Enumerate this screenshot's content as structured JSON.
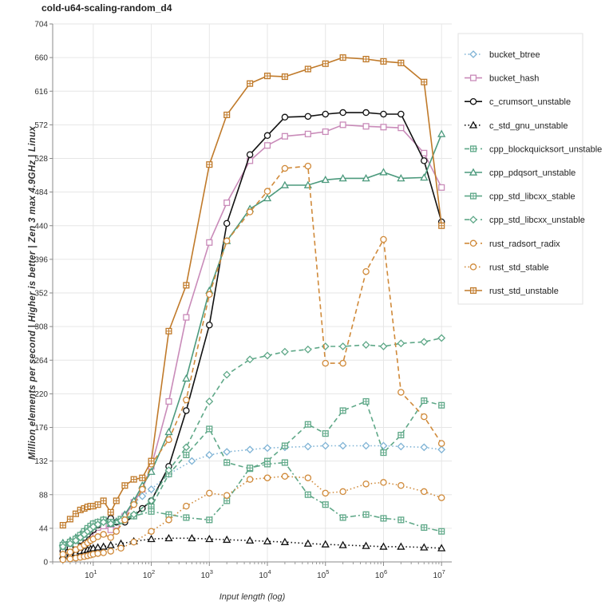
{
  "chart_data": {
    "type": "line",
    "title": "cold-u64-scaling-random_d4",
    "xlabel": "Input length (log)",
    "ylabel": "Million elements per second | Higher is better | Zen 3 max 4.9GHz | Linux",
    "xscale": "log",
    "xlim": [
      2,
      15000000
    ],
    "ylim": [
      0,
      704
    ],
    "yticks": [
      0,
      44,
      88,
      132,
      176,
      220,
      264,
      308,
      352,
      396,
      440,
      484,
      528,
      572,
      616,
      660,
      704
    ],
    "xticks": [
      {
        "value": 10,
        "base": "10",
        "exp": "1"
      },
      {
        "value": 100,
        "base": "10",
        "exp": "2"
      },
      {
        "value": 1000,
        "base": "10",
        "exp": "3"
      },
      {
        "value": 10000,
        "base": "10",
        "exp": "4"
      },
      {
        "value": 100000,
        "base": "10",
        "exp": "5"
      },
      {
        "value": 1000000,
        "base": "10",
        "exp": "6"
      },
      {
        "value": 10000000,
        "base": "10",
        "exp": "7"
      }
    ],
    "legend_position": "right",
    "series": [
      {
        "name": "bucket_btree",
        "color": "#7fb3d5",
        "dash": "dot",
        "marker": "diamond",
        "x": [
          3,
          4,
          5,
          6,
          7,
          8,
          9,
          10,
          12,
          15,
          20,
          25,
          35,
          50,
          70,
          100,
          200,
          500,
          1000,
          2000,
          5000,
          10000,
          20000,
          50000,
          100000,
          200000,
          500000,
          1000000,
          2000000,
          5000000,
          10000000
        ],
        "y": [
          22,
          25,
          28,
          32,
          36,
          40,
          43,
          47,
          50,
          53,
          47,
          52,
          62,
          77,
          86,
          95,
          115,
          132,
          140,
          144,
          147,
          149,
          150,
          151,
          152,
          152,
          152,
          152,
          151,
          150,
          147
        ]
      },
      {
        "name": "bucket_hash",
        "color": "#c98bb9",
        "dash": "solid",
        "marker": "square",
        "x": [
          3,
          4,
          5,
          6,
          7,
          8,
          9,
          10,
          12,
          15,
          20,
          25,
          35,
          50,
          70,
          100,
          200,
          400,
          1000,
          2000,
          5000,
          10000,
          20000,
          50000,
          100000,
          200000,
          500000,
          1000000,
          2000000,
          5000000,
          10000000
        ],
        "y": [
          18,
          22,
          25,
          28,
          32,
          36,
          39,
          42,
          45,
          47,
          42,
          48,
          60,
          78,
          95,
          125,
          210,
          320,
          418,
          470,
          525,
          545,
          557,
          560,
          563,
          572,
          570,
          569,
          568,
          535,
          490
        ]
      },
      {
        "name": "c_crumsort_unstable",
        "color": "#111111",
        "dash": "solid",
        "marker": "circle",
        "x": [
          3,
          4,
          5,
          6,
          7,
          8,
          9,
          10,
          12,
          15,
          20,
          25,
          35,
          50,
          70,
          100,
          200,
          400,
          1000,
          2000,
          5000,
          10000,
          20000,
          50000,
          100000,
          200000,
          500000,
          1000000,
          2000000,
          5000000,
          10000000
        ],
        "y": [
          14,
          18,
          22,
          28,
          32,
          36,
          40,
          42,
          48,
          55,
          57,
          52,
          52,
          60,
          70,
          80,
          125,
          198,
          310,
          443,
          533,
          558,
          582,
          583,
          586,
          588,
          588,
          586,
          586,
          525,
          445
        ]
      },
      {
        "name": "c_std_gnu_unstable",
        "color": "#111111",
        "dash": "dot",
        "marker": "triangle",
        "x": [
          3,
          4,
          5,
          6,
          7,
          8,
          9,
          10,
          12,
          15,
          20,
          30,
          50,
          100,
          200,
          500,
          1000,
          2000,
          5000,
          10000,
          20000,
          50000,
          100000,
          200000,
          500000,
          1000000,
          2000000,
          5000000,
          10000000
        ],
        "y": [
          8,
          10,
          12,
          14,
          15,
          16,
          17,
          18,
          19,
          20,
          22,
          24,
          27,
          30,
          31,
          31,
          30,
          29,
          28,
          27,
          26,
          24,
          23,
          22,
          21,
          20,
          20,
          19,
          18
        ]
      },
      {
        "name": "cpp_blockquicksort_unstable",
        "color": "#5fa888",
        "dash": "dash",
        "marker": "square-cross",
        "x": [
          3,
          4,
          5,
          6,
          7,
          8,
          9,
          10,
          12,
          15,
          20,
          30,
          50,
          100,
          200,
          400,
          1000,
          2000,
          5000,
          10000,
          20000,
          50000,
          100000,
          200000,
          500000,
          1000000,
          2000000,
          5000000,
          10000000
        ],
        "y": [
          20,
          24,
          28,
          32,
          36,
          40,
          44,
          46,
          50,
          54,
          52,
          54,
          60,
          72,
          115,
          140,
          174,
          130,
          122,
          132,
          152,
          180,
          168,
          198,
          210,
          143,
          166,
          211,
          205
        ]
      },
      {
        "name": "cpp_pdqsort_unstable",
        "color": "#4c9a7d",
        "dash": "solid",
        "marker": "triangle",
        "x": [
          3,
          4,
          5,
          6,
          7,
          8,
          9,
          10,
          12,
          15,
          20,
          25,
          35,
          50,
          70,
          100,
          200,
          400,
          1000,
          2000,
          5000,
          10000,
          20000,
          50000,
          100000,
          200000,
          500000,
          1000000,
          2000000,
          5000000,
          10000000
        ],
        "y": [
          25,
          28,
          32,
          36,
          40,
          44,
          48,
          50,
          52,
          55,
          50,
          53,
          62,
          80,
          100,
          118,
          170,
          240,
          355,
          420,
          462,
          476,
          493,
          493,
          500,
          502,
          502,
          510,
          502,
          503,
          560
        ]
      },
      {
        "name": "cpp_std_libcxx_stable",
        "color": "#5fa888",
        "dash": "dashdot",
        "marker": "square-cross",
        "x": [
          3,
          4,
          5,
          6,
          7,
          8,
          9,
          10,
          12,
          15,
          20,
          30,
          50,
          100,
          200,
          400,
          1000,
          2000,
          5000,
          10000,
          20000,
          50000,
          100000,
          200000,
          500000,
          1000000,
          2000000,
          5000000,
          10000000
        ],
        "y": [
          22,
          26,
          30,
          35,
          40,
          44,
          47,
          50,
          52,
          55,
          52,
          56,
          60,
          66,
          62,
          58,
          55,
          80,
          123,
          128,
          130,
          88,
          75,
          58,
          62,
          57,
          55,
          45,
          40
        ]
      },
      {
        "name": "cpp_std_libcxx_unstable",
        "color": "#5fa888",
        "dash": "dash",
        "marker": "diamond",
        "x": [
          3,
          4,
          5,
          6,
          7,
          8,
          9,
          10,
          12,
          15,
          20,
          30,
          50,
          100,
          200,
          400,
          1000,
          2000,
          5000,
          10000,
          20000,
          50000,
          100000,
          200000,
          500000,
          1000000,
          2000000,
          5000000,
          10000000
        ],
        "y": [
          20,
          24,
          28,
          32,
          36,
          40,
          43,
          46,
          49,
          52,
          50,
          54,
          62,
          80,
          120,
          150,
          210,
          245,
          265,
          270,
          275,
          278,
          282,
          282,
          284,
          282,
          286,
          288,
          293
        ]
      },
      {
        "name": "rust_radsort_radix",
        "color": "#d08a3a",
        "dash": "dash",
        "marker": "circle",
        "x": [
          3,
          4,
          5,
          6,
          7,
          8,
          9,
          10,
          12,
          15,
          20,
          25,
          35,
          50,
          70,
          100,
          200,
          400,
          1000,
          2000,
          5000,
          10000,
          20000,
          50000,
          100000,
          200000,
          500000,
          1000000,
          2000000,
          5000000,
          10000000
        ],
        "y": [
          10,
          13,
          16,
          19,
          22,
          25,
          28,
          30,
          33,
          36,
          32,
          40,
          55,
          75,
          95,
          128,
          160,
          212,
          350,
          420,
          458,
          485,
          515,
          518,
          260,
          260,
          380,
          422,
          222,
          190,
          155
        ]
      },
      {
        "name": "rust_std_stable",
        "color": "#d08a3a",
        "dash": "dot",
        "marker": "circle",
        "x": [
          3,
          4,
          5,
          6,
          7,
          8,
          9,
          10,
          12,
          15,
          20,
          30,
          50,
          100,
          200,
          400,
          1000,
          2000,
          5000,
          10000,
          20000,
          50000,
          100000,
          200000,
          500000,
          1000000,
          2000000,
          5000000,
          10000000
        ],
        "y": [
          3,
          4,
          5,
          6,
          7,
          8,
          9,
          10,
          11,
          12,
          14,
          18,
          26,
          40,
          55,
          73,
          90,
          87,
          108,
          110,
          112,
          110,
          90,
          92,
          102,
          104,
          100,
          92,
          84
        ]
      },
      {
        "name": "rust_std_unstable",
        "color": "#c07a2a",
        "dash": "solid",
        "marker": "square-cross",
        "x": [
          3,
          4,
          5,
          6,
          7,
          8,
          9,
          10,
          12,
          15,
          20,
          25,
          35,
          50,
          70,
          100,
          200,
          400,
          1000,
          2000,
          5000,
          10000,
          20000,
          50000,
          100000,
          200000,
          500000,
          1000000,
          2000000,
          5000000,
          10000000
        ],
        "y": [
          48,
          56,
          63,
          68,
          70,
          72,
          73,
          73,
          75,
          80,
          65,
          80,
          100,
          108,
          110,
          132,
          302,
          362,
          520,
          585,
          626,
          636,
          635,
          645,
          652,
          660,
          658,
          655,
          653,
          628,
          440
        ]
      }
    ]
  }
}
